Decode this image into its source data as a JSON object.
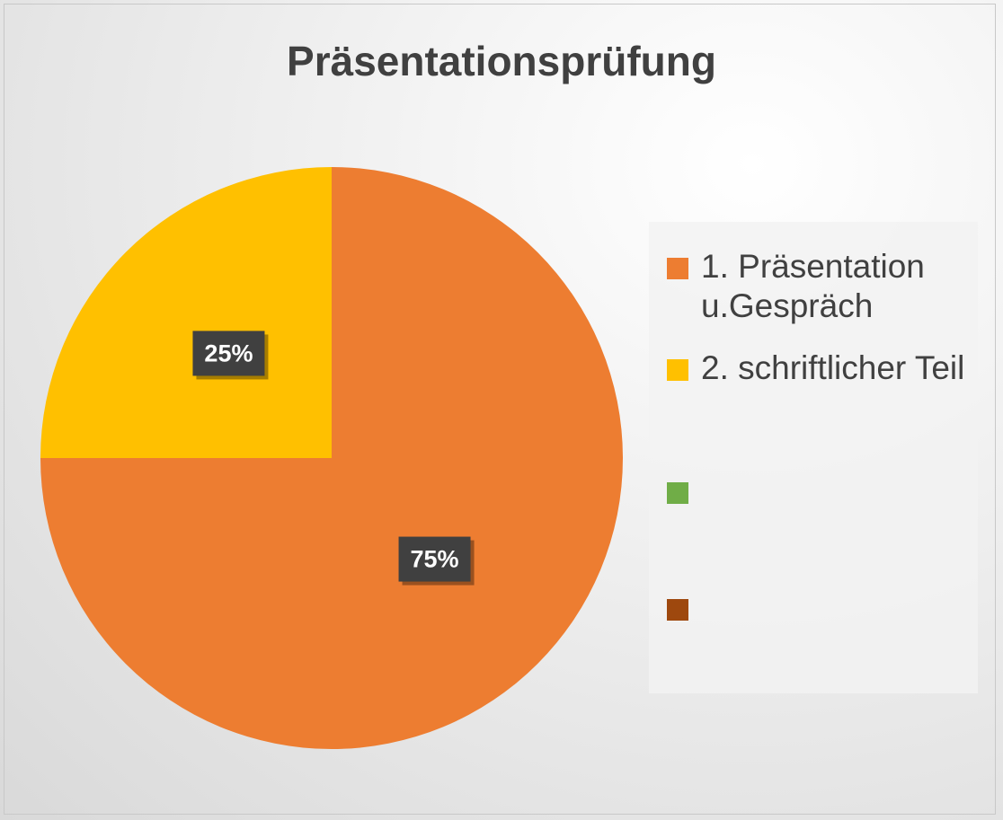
{
  "chart_data": {
    "type": "pie",
    "title": "Präsentationsprüfung",
    "categories": [
      "1. Präsentation u.Gespräch",
      "2. schriftlicher Teil",
      null,
      null
    ],
    "values": [
      75,
      25,
      0,
      0
    ],
    "value_labels": [
      "75%",
      "25%",
      null,
      null
    ],
    "colors": [
      "#ed7d31",
      "#ffc000",
      "#70ad47",
      "#9e480e"
    ],
    "legend": "right"
  }
}
